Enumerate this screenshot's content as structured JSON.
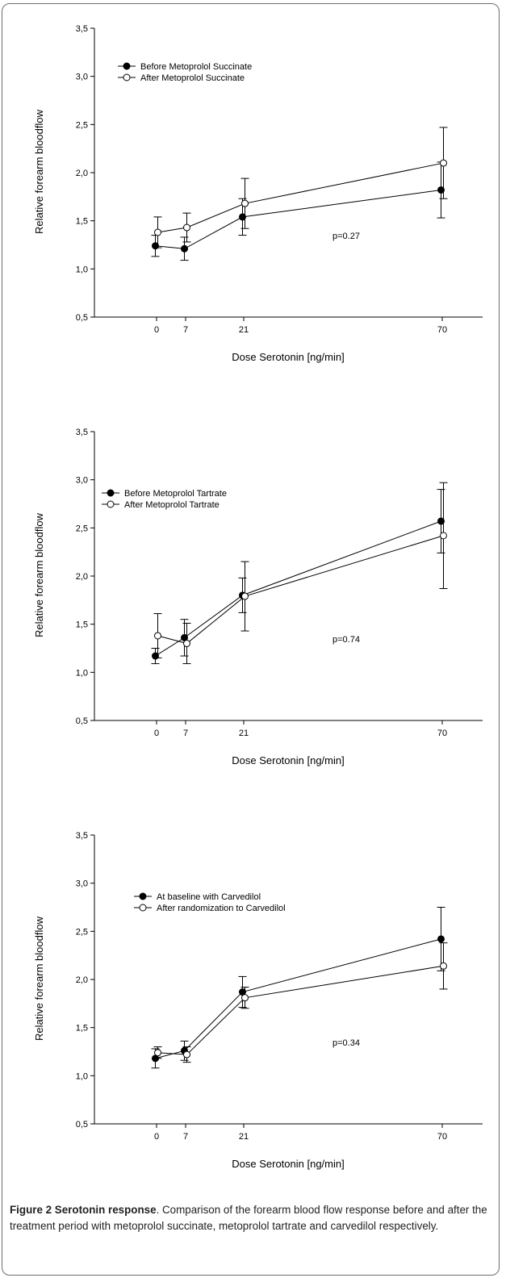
{
  "chart_data": [
    {
      "type": "line",
      "x": [
        0,
        7,
        21,
        70
      ],
      "xticks": [
        "0",
        "7",
        "21",
        "70"
      ],
      "xlabel": "Dose Serotonin [ng/min]",
      "ylabel": "Relative forearm bloodflow",
      "ylim": [
        0.5,
        3.5
      ],
      "yticks": [
        "0,5",
        "1,0",
        "1,5",
        "2,0",
        "2,5",
        "3,0",
        "3,5"
      ],
      "annotation": "p=0.27",
      "legend_position": "top-left",
      "series": [
        {
          "name": "Before Metoprolol Succinate",
          "marker": "filled",
          "values": [
            1.24,
            1.21,
            1.54,
            1.82
          ],
          "errors": [
            0.11,
            0.12,
            0.19,
            0.29
          ]
        },
        {
          "name": "After Metoprolol Succinate",
          "marker": "open",
          "values": [
            1.38,
            1.43,
            1.68,
            2.1
          ],
          "errors": [
            0.16,
            0.15,
            0.26,
            0.37
          ]
        }
      ]
    },
    {
      "type": "line",
      "x": [
        0,
        7,
        21,
        70
      ],
      "xticks": [
        "0",
        "7",
        "21",
        "70"
      ],
      "xlabel": "Dose Serotonin [ng/min]",
      "ylabel": "Relative forearm bloodflow",
      "ylim": [
        0.5,
        3.5
      ],
      "yticks": [
        "0,5",
        "1,0",
        "1,5",
        "2,0",
        "2,5",
        "3,0",
        "3,5"
      ],
      "annotation": "p=0.74",
      "legend_position": "top-left",
      "series": [
        {
          "name": "Before Metoprolol Tartrate",
          "marker": "filled",
          "values": [
            1.17,
            1.36,
            1.8,
            2.57
          ],
          "errors": [
            0.08,
            0.19,
            0.18,
            0.33
          ]
        },
        {
          "name": "After Metoprolol Tartrate",
          "marker": "open",
          "values": [
            1.38,
            1.3,
            1.79,
            2.42
          ],
          "errors": [
            0.23,
            0.21,
            0.36,
            0.55
          ]
        }
      ]
    },
    {
      "type": "line",
      "x": [
        0,
        7,
        21,
        70
      ],
      "xticks": [
        "0",
        "7",
        "21",
        "70"
      ],
      "xlabel": "Dose Serotonin [ng/min]",
      "ylabel": "Relative forearm bloodflow",
      "ylim": [
        0.5,
        3.5
      ],
      "yticks": [
        "0,5",
        "1,0",
        "1,5",
        "2,0",
        "2,5",
        "3,0",
        "3,5"
      ],
      "annotation": "p=0.34",
      "legend_position": "top-left",
      "series": [
        {
          "name": "At baseline with Carvedilol",
          "marker": "filled",
          "values": [
            1.18,
            1.26,
            1.87,
            2.42
          ],
          "errors": [
            0.1,
            0.1,
            0.16,
            0.33
          ]
        },
        {
          "name": "After randomization to Carvedilol",
          "marker": "open",
          "values": [
            1.24,
            1.22,
            1.81,
            2.14
          ],
          "errors": [
            0.06,
            0.08,
            0.11,
            0.24
          ]
        }
      ]
    }
  ],
  "caption": {
    "label": "Figure 2 Serotonin response",
    "text": ". Comparison of the forearm blood flow response before and after the treatment period with metoprolol succinate, metoprolol tartrate and carvedilol respectively."
  }
}
